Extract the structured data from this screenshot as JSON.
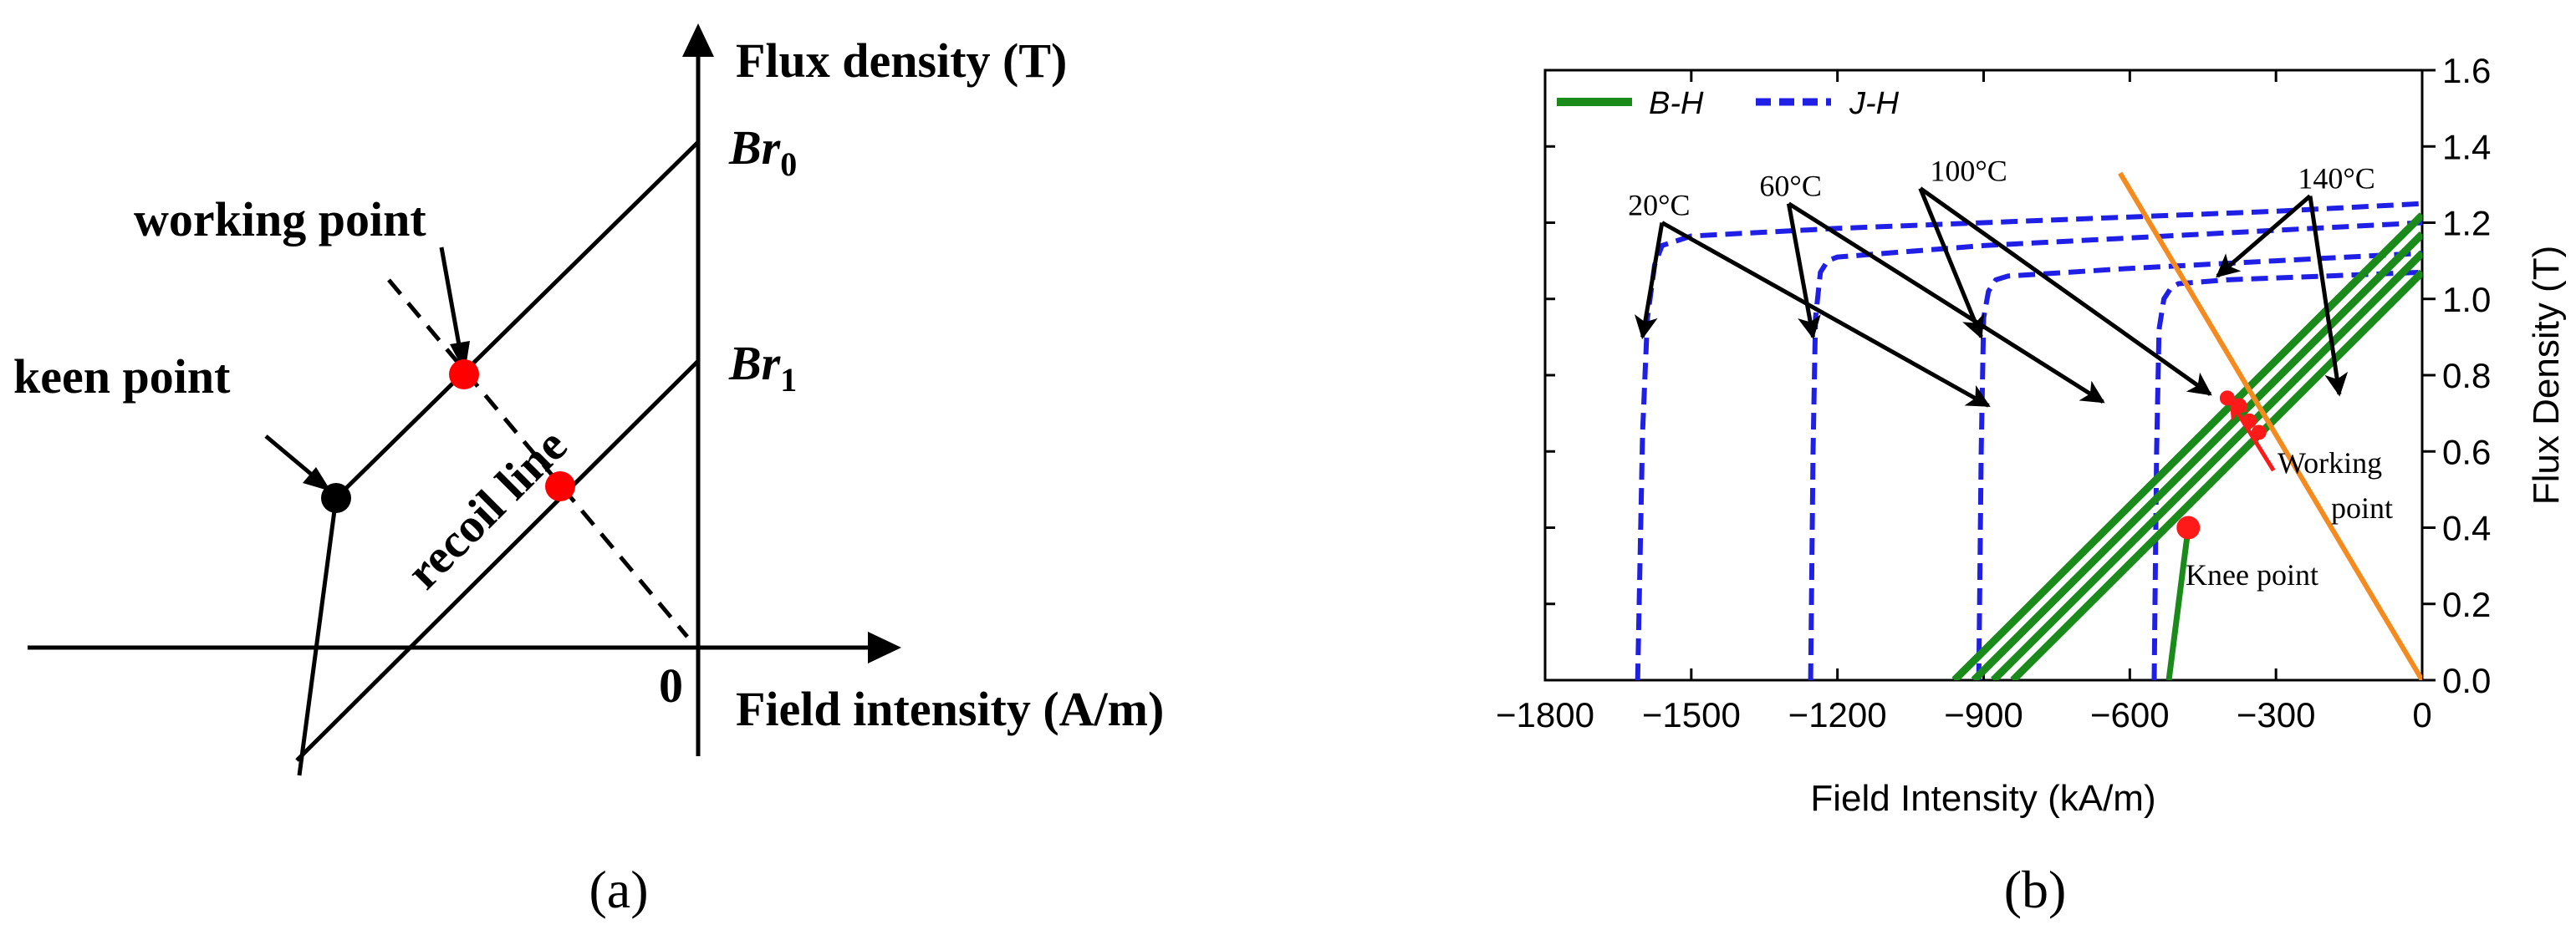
{
  "chart_data": [
    {
      "panel": "(a)",
      "type": "diagram",
      "xlabel": "Field intensity (A/m)",
      "ylabel": "Flux density (T)",
      "origin_label": "0",
      "labels": {
        "br0_base": "Br",
        "br0_sub": "0",
        "br1_base": "Br",
        "br1_sub": "1",
        "working_point": "working point",
        "keen_point": "keen point",
        "recoil_line": "recoil line"
      },
      "colors": {
        "line": "#000000",
        "working_point": "#ff0000",
        "knee_point": "#000000"
      }
    },
    {
      "panel": "(b)",
      "type": "line",
      "xlabel": "Field Intensity (kA/m)",
      "ylabel": "Flux Density (T)",
      "xlim": [
        -1800,
        0
      ],
      "ylim": [
        0,
        1.6
      ],
      "xticks": [
        -1800,
        -1500,
        -1200,
        -900,
        -600,
        -300,
        0
      ],
      "xtick_labels": [
        "−1800",
        "−1500",
        "−1200",
        "−900",
        "−600",
        "−300",
        "0"
      ],
      "yticks": [
        0.0,
        0.2,
        0.4,
        0.6,
        0.8,
        1.0,
        1.2,
        1.4,
        1.6
      ],
      "ytick_labels": [
        "0.0",
        "0.2",
        "0.4",
        "0.6",
        "0.8",
        "1.0",
        "1.2",
        "1.4",
        "1.6"
      ],
      "legend": [
        "B-H",
        "J-H"
      ],
      "legend_position": "top-left",
      "temperatures": [
        "20°C",
        "60°C",
        "100°C",
        "140°C"
      ],
      "bh_series": [
        {
          "name": "B-H 20°C",
          "x": [
            -960,
            0
          ],
          "y": [
            0.0,
            1.22
          ]
        },
        {
          "name": "B-H 60°C",
          "x": [
            -920,
            0
          ],
          "y": [
            0.0,
            1.17
          ]
        },
        {
          "name": "B-H 100°C",
          "x": [
            -880,
            0
          ],
          "y": [
            0.0,
            1.12
          ]
        },
        {
          "name": "B-H 140°C",
          "x": [
            -840,
            0
          ],
          "y": [
            0.0,
            1.07
          ]
        }
      ],
      "bh_knee_segment": {
        "x": [
          -520,
          -510,
          -500,
          -490,
          -480
        ],
        "y": [
          0.0,
          0.1,
          0.2,
          0.3,
          0.4
        ]
      },
      "jh_series": [
        {
          "name": "J-H 20°C",
          "x": [
            -1610,
            -1600,
            -1590,
            -1575,
            -1560,
            -1500,
            -1200,
            -900,
            -600,
            -300,
            0
          ],
          "y": [
            0.0,
            0.65,
            0.95,
            1.09,
            1.14,
            1.165,
            1.185,
            1.2,
            1.215,
            1.23,
            1.25
          ]
        },
        {
          "name": "J-H 60°C",
          "x": [
            -1255,
            -1250,
            -1245,
            -1235,
            -1220,
            -1200,
            -900,
            -600,
            -300,
            0
          ],
          "y": [
            0.0,
            0.6,
            0.95,
            1.07,
            1.1,
            1.11,
            1.14,
            1.16,
            1.18,
            1.2
          ]
        },
        {
          "name": "J-H 100°C",
          "x": [
            -910,
            -905,
            -900,
            -890,
            -875,
            -850,
            -600,
            -300,
            0
          ],
          "y": [
            0.0,
            0.6,
            0.95,
            1.02,
            1.05,
            1.06,
            1.08,
            1.1,
            1.12
          ]
        },
        {
          "name": "J-H 140°C",
          "x": [
            -550,
            -545,
            -540,
            -530,
            -515,
            -500,
            -400,
            -200,
            0
          ],
          "y": [
            0.0,
            0.6,
            0.92,
            1.0,
            1.03,
            1.04,
            1.05,
            1.06,
            1.07
          ]
        }
      ],
      "load_line": {
        "x": [
          -620,
          0
        ],
        "y": [
          1.33,
          0.0
        ]
      },
      "working_points": {
        "x": [
          -400,
          -375,
          -355,
          -335
        ],
        "y": [
          0.74,
          0.72,
          0.68,
          0.65
        ]
      },
      "working_arrow_tail": {
        "x": -305,
        "y": 0.55
      },
      "knee_point": {
        "x": -480,
        "y": 0.4
      },
      "annotations": {
        "working_point_line1": "Working",
        "working_point_line2": "point",
        "knee_point": "Knee point"
      },
      "temp_arrows": [
        {
          "label": "20°C",
          "label_at": [
            -1630,
            1.22
          ],
          "from": [
            -1560,
            1.2
          ],
          "to": [
            [
              -1600,
              0.9
            ],
            [
              -890,
              0.72
            ]
          ]
        },
        {
          "label": "60°C",
          "label_at": [
            -1360,
            1.27
          ],
          "from": [
            -1300,
            1.25
          ],
          "to": [
            [
              -1250,
              0.9
            ],
            [
              -655,
              0.73
            ]
          ]
        },
        {
          "label": "100°C",
          "label_at": [
            -1010,
            1.31
          ],
          "from": [
            -1030,
            1.29
          ],
          "to": [
            [
              -905,
              0.9
            ],
            [
              -435,
              0.75
            ]
          ]
        },
        {
          "label": "140°C",
          "label_at": [
            -255,
            1.29
          ],
          "from": [
            -230,
            1.27
          ],
          "to": [
            [
              -420,
              1.06
            ],
            [
              -170,
              0.75
            ]
          ]
        }
      ],
      "colors": {
        "bh": "#1a8a1a",
        "jh": "#1f1fe6",
        "load_line": "#f58a1f",
        "working_point": "#ff1a1a",
        "knee_point": "#ff1a1a",
        "axes": "#000000"
      }
    }
  ],
  "captions": {
    "a": "(a)",
    "b": "(b)"
  }
}
